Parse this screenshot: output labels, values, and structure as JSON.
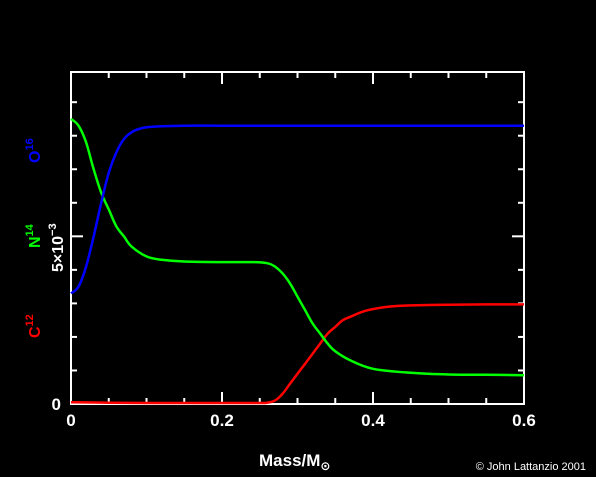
{
  "chart_data": {
    "type": "line",
    "title": "",
    "xlabel": "Mass/M",
    "xlabel_symbol": "⊙",
    "ylabel_scale": "5×10",
    "ylabel_exponent": "−3",
    "xlim": [
      0,
      0.6
    ],
    "ylim": [
      0,
      0.0099
    ],
    "x_ticks": [
      "0",
      "0.2",
      "0.4",
      "0.6"
    ],
    "y_ticks": [
      "0"
    ],
    "grid": false,
    "credit": "© John Lattanzio 2001",
    "colors": {
      "background": "#000000",
      "axes": "#ffffff",
      "C12": "#ff0000",
      "N14": "#00ff00",
      "O16": "#0000ff"
    },
    "series": [
      {
        "name": "C12",
        "label_base": "C",
        "label_sup": "12",
        "x": [
          0,
          0.05,
          0.1,
          0.15,
          0.2,
          0.25,
          0.26,
          0.27,
          0.28,
          0.29,
          0.3,
          0.31,
          0.32,
          0.33,
          0.34,
          0.35,
          0.36,
          0.37,
          0.38,
          0.39,
          0.4,
          0.42,
          0.45,
          0.5,
          0.55,
          0.6
        ],
        "values": [
          5e-05,
          4e-05,
          3e-05,
          3e-05,
          3e-05,
          3e-05,
          4e-05,
          0.0001,
          0.0003,
          0.0006,
          0.0009,
          0.0012,
          0.0015,
          0.0018,
          0.0021,
          0.0023,
          0.0025,
          0.0026,
          0.0027,
          0.00278,
          0.00283,
          0.0029,
          0.00294,
          0.00296,
          0.00297,
          0.00297
        ]
      },
      {
        "name": "N14",
        "label_base": "N",
        "label_sup": "14",
        "x": [
          0,
          0.01,
          0.02,
          0.03,
          0.04,
          0.05,
          0.06,
          0.07,
          0.08,
          0.1,
          0.12,
          0.15,
          0.2,
          0.24,
          0.26,
          0.27,
          0.28,
          0.29,
          0.3,
          0.31,
          0.32,
          0.33,
          0.34,
          0.35,
          0.37,
          0.4,
          0.45,
          0.5,
          0.55,
          0.6
        ],
        "values": [
          0.0085,
          0.0083,
          0.0078,
          0.007,
          0.0063,
          0.0058,
          0.0053,
          0.005,
          0.0047,
          0.0044,
          0.0043,
          0.00425,
          0.00423,
          0.00423,
          0.0042,
          0.0041,
          0.0039,
          0.0036,
          0.0032,
          0.0028,
          0.0024,
          0.0021,
          0.0018,
          0.00157,
          0.0013,
          0.00105,
          0.00093,
          0.00088,
          0.00087,
          0.00086
        ]
      },
      {
        "name": "O16",
        "label_base": "O",
        "label_sup": "16",
        "x": [
          0,
          0.01,
          0.02,
          0.03,
          0.04,
          0.05,
          0.06,
          0.07,
          0.08,
          0.09,
          0.1,
          0.12,
          0.15,
          0.2,
          0.3,
          0.4,
          0.5,
          0.6
        ],
        "values": [
          0.0033,
          0.0035,
          0.0041,
          0.005,
          0.006,
          0.0069,
          0.0075,
          0.0079,
          0.0081,
          0.0082,
          0.00825,
          0.00828,
          0.0083,
          0.0083,
          0.0083,
          0.0083,
          0.0083,
          0.0083
        ]
      }
    ]
  }
}
